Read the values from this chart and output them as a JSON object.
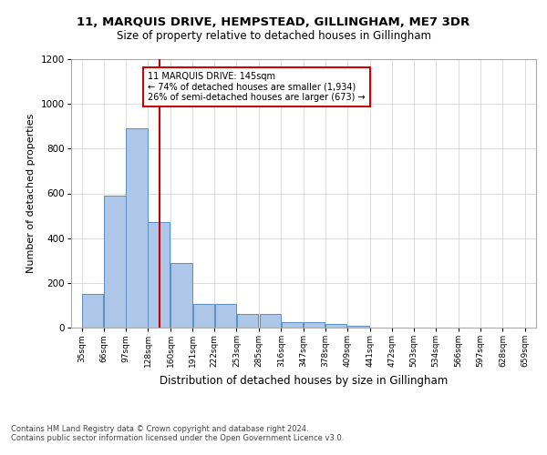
{
  "title1": "11, MARQUIS DRIVE, HEMPSTEAD, GILLINGHAM, ME7 3DR",
  "title2": "Size of property relative to detached houses in Gillingham",
  "xlabel": "Distribution of detached houses by size in Gillingham",
  "ylabel": "Number of detached properties",
  "annotation_line1": "11 MARQUIS DRIVE: 145sqm",
  "annotation_line2": "← 74% of detached houses are smaller (1,934)",
  "annotation_line3": "26% of semi-detached houses are larger (673) →",
  "property_size": 145,
  "bar_left_edges": [
    35,
    66,
    97,
    128,
    160,
    191,
    222,
    253,
    285,
    316,
    347,
    378,
    409,
    441,
    472,
    503,
    534,
    566,
    597,
    628
  ],
  "bar_widths": [
    31,
    31,
    31,
    31,
    31,
    31,
    31,
    31,
    31,
    31,
    31,
    31,
    31,
    31,
    31,
    31,
    31,
    31,
    31,
    31
  ],
  "bar_heights": [
    150,
    590,
    890,
    470,
    290,
    105,
    105,
    60,
    60,
    25,
    25,
    15,
    10,
    0,
    0,
    0,
    0,
    0,
    0,
    0
  ],
  "bar_color": "#aec6e8",
  "bar_edge_color": "#5a8fc4",
  "vline_color": "#cc0000",
  "vline_x": 145,
  "ylim": [
    0,
    1200
  ],
  "yticks": [
    0,
    200,
    400,
    600,
    800,
    1000,
    1200
  ],
  "xtick_labels": [
    "35sqm",
    "66sqm",
    "97sqm",
    "128sqm",
    "160sqm",
    "191sqm",
    "222sqm",
    "253sqm",
    "285sqm",
    "316sqm",
    "347sqm",
    "378sqm",
    "409sqm",
    "441sqm",
    "472sqm",
    "503sqm",
    "534sqm",
    "566sqm",
    "597sqm",
    "628sqm",
    "659sqm"
  ],
  "xtick_positions": [
    35,
    66,
    97,
    128,
    160,
    191,
    222,
    253,
    285,
    316,
    347,
    378,
    409,
    441,
    472,
    503,
    534,
    566,
    597,
    628,
    659
  ],
  "grid_color": "#d0d0d0",
  "background_color": "#ffffff",
  "footnote1": "Contains HM Land Registry data © Crown copyright and database right 2024.",
  "footnote2": "Contains public sector information licensed under the Open Government Licence v3.0."
}
